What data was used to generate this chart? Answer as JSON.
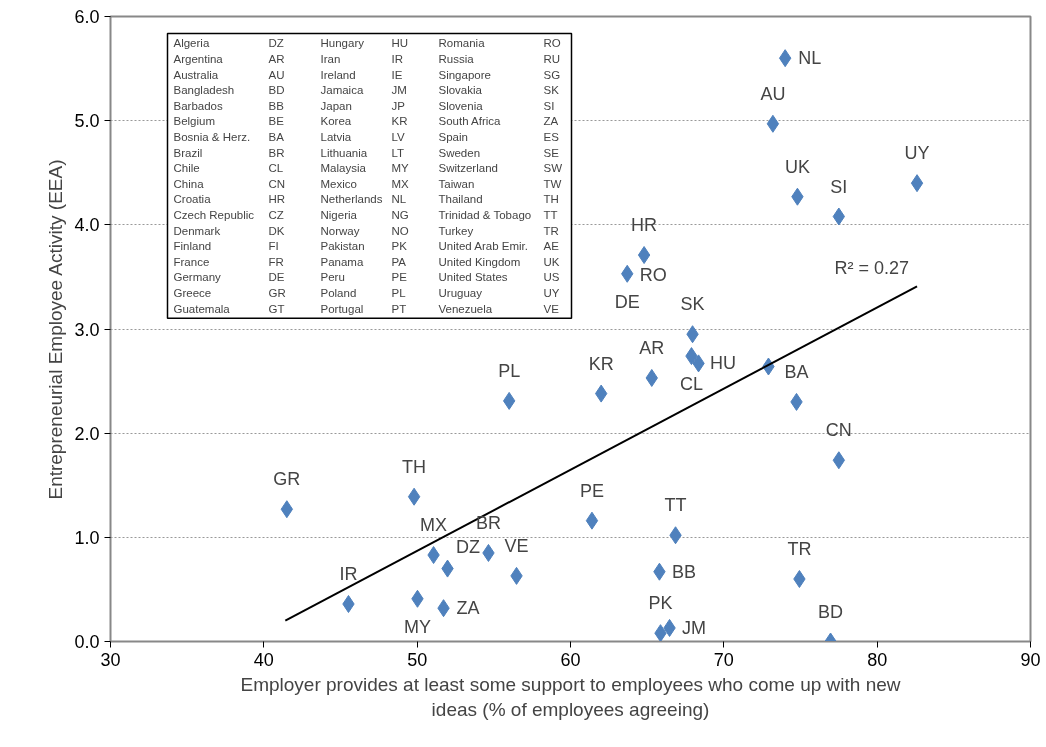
{
  "chart_data": {
    "type": "scatter",
    "ylabel": "Entrepreneurial Employee Activity (EEA)",
    "xlabel": "Employer provides at least some support to employees who come up with new ideas (% of employees agreeing)",
    "xlim": [
      30,
      90
    ],
    "xticks": [
      30,
      40,
      50,
      60,
      70,
      80,
      90
    ],
    "ylim": [
      0,
      6
    ],
    "yticks": [
      {
        "value": 0,
        "label": "0.0"
      },
      {
        "value": 1,
        "label": "1.0"
      },
      {
        "value": 2,
        "label": "2.0"
      },
      {
        "value": 3,
        "label": "3.0"
      },
      {
        "value": 4,
        "label": "4.0"
      },
      {
        "value": 5,
        "label": "5.0"
      },
      {
        "value": 6,
        "label": "6.0"
      }
    ],
    "grid": "y",
    "series": [
      {
        "marker": "diamond",
        "color": "#4f81bd",
        "x": [
          74.0,
          73.2,
          82.6,
          74.8,
          77.5,
          64.8,
          63.7,
          63.8,
          67.96,
          67.89,
          68.35,
          72.91,
          74.74,
          65.3,
          62.0,
          56.0,
          77.5,
          41.5,
          49.8,
          61.4,
          66.85,
          54.65,
          51.07,
          51.98,
          56.48,
          65.8,
          74.93,
          45.52,
          50.02,
          51.72,
          65.87,
          66.46,
          76.96
        ],
        "values": [
          5.6,
          4.97,
          4.4,
          4.27,
          4.08,
          3.71,
          3.53,
          null,
          2.95,
          2.74,
          2.67,
          2.64,
          2.3,
          2.53,
          2.38,
          2.31,
          1.74,
          1.27,
          1.39,
          1.16,
          1.02,
          0.85,
          0.83,
          0.7,
          0.63,
          0.67,
          0.6,
          0.36,
          0.41,
          0.32,
          0.08,
          0.13,
          0.0
        ]
      },
      {
        "type": "line",
        "color": "#000000",
        "x": [
          41.4,
          82.6
        ],
        "values": [
          0.2,
          3.41
        ]
      }
    ],
    "annotations": [
      {
        "text": "NL",
        "x": 74.0,
        "y": 5.6
      },
      {
        "text": "AU",
        "x": 73.2,
        "y": 4.97
      },
      {
        "text": "UY",
        "x": 82.6,
        "y": 4.4
      },
      {
        "text": "UK",
        "x": 74.8,
        "y": 4.27
      },
      {
        "text": "SI",
        "x": 77.5,
        "y": 4.08
      },
      {
        "text": "HR",
        "x": 64.8,
        "y": 3.71
      },
      {
        "text": "DE",
        "x": 63.7,
        "y": 3.53
      },
      {
        "text": "RO",
        "x": 63.8,
        "y": 3.52
      },
      {
        "text": "SK",
        "x": 67.96,
        "y": 2.95
      },
      {
        "text": "CL",
        "x": 67.89,
        "y": 2.74
      },
      {
        "text": "HU",
        "x": 68.35,
        "y": 2.67
      },
      {
        "text": "BA",
        "x": 74.74,
        "y": 2.3
      },
      {
        "text": "AR",
        "x": 65.3,
        "y": 2.53
      },
      {
        "text": "KR",
        "x": 62.0,
        "y": 2.38
      },
      {
        "text": "PL",
        "x": 56.0,
        "y": 2.31
      },
      {
        "text": "CN",
        "x": 77.5,
        "y": 1.74
      },
      {
        "text": "GR",
        "x": 41.5,
        "y": 1.27
      },
      {
        "text": "TH",
        "x": 49.8,
        "y": 1.39
      },
      {
        "text": "PE",
        "x": 61.4,
        "y": 1.16
      },
      {
        "text": "TT",
        "x": 66.85,
        "y": 1.02
      },
      {
        "text": "BR",
        "x": 54.65,
        "y": 0.85
      },
      {
        "text": "MX",
        "x": 51.07,
        "y": 0.83
      },
      {
        "text": "DZ",
        "x": 51.98,
        "y": 0.7
      },
      {
        "text": "VE",
        "x": 56.48,
        "y": 0.63
      },
      {
        "text": "BB",
        "x": 65.8,
        "y": 0.67
      },
      {
        "text": "TR",
        "x": 74.93,
        "y": 0.6
      },
      {
        "text": "IR",
        "x": 45.52,
        "y": 0.36
      },
      {
        "text": "MY",
        "x": 50.02,
        "y": 0.41
      },
      {
        "text": "ZA",
        "x": 51.72,
        "y": 0.32
      },
      {
        "text": "PK",
        "x": 65.87,
        "y": 0.08
      },
      {
        "text": "JM",
        "x": 66.46,
        "y": 0.13
      },
      {
        "text": "BD",
        "x": 76.96,
        "y": 0.0
      },
      "R² = 0.27",
      "Algeria",
      "DZ",
      "Argentina",
      "AR",
      "Australia",
      "AU",
      "Bangladesh",
      "BD",
      "Barbados",
      "BB",
      "Belgium",
      "BE",
      "Bosnia & Herz.",
      "BA",
      "Brazil",
      "BR",
      "Chile",
      "CL",
      "China",
      "CN",
      "Croatia",
      "HR",
      "Czech Republic",
      "CZ",
      "Denmark",
      "DK",
      "Finland",
      "FI",
      "France",
      "FR",
      "Germany",
      "DE",
      "Greece",
      "GR",
      "Guatemala",
      "GT",
      "Hungary",
      "HU",
      "Iran",
      "IR",
      "Ireland",
      "IE",
      "Jamaica",
      "JM",
      "Japan",
      "JP",
      "Korea",
      "KR",
      "Latvia",
      "LV",
      "Lithuania",
      "LT",
      "Malaysia",
      "MY",
      "Mexico",
      "MX",
      "Netherlands",
      "NL",
      "Nigeria",
      "NG",
      "Norway",
      "NO",
      "Pakistan",
      "PK",
      "Panama",
      "PA",
      "Peru",
      "PE",
      "Poland",
      "PL",
      "Portugal",
      "PT",
      "Romania",
      "RO",
      "Russia",
      "RU",
      "Singapore",
      "SG",
      "Slovakia",
      "SK",
      "Slovenia",
      "SI",
      "South Africa",
      "ZA",
      "Spain",
      "ES",
      "Sweden",
      "SE",
      "Switzerland",
      "SW",
      "Taiwan",
      "TW",
      "Thailand",
      "TH",
      "Trinidad & Tobago",
      "TT",
      "Turkey",
      "TR",
      "United Arab Emir.",
      "AE",
      "United Kingdom",
      "UK",
      "United States",
      "US",
      "Uruguay",
      "UY",
      "Venezuela",
      "VE"
    ]
  }
}
